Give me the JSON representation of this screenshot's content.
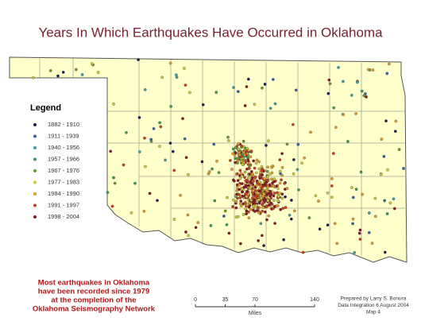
{
  "title": "Years In Which Earthquakes Have Occurred in Oklahoma",
  "legend": {
    "title": "Legend",
    "items": [
      {
        "label": "1882 - 1910",
        "color": "#1c1c5a"
      },
      {
        "label": "1911 - 1939",
        "color": "#3a5fa8"
      },
      {
        "label": "1940 - 1956",
        "color": "#3aa0a8"
      },
      {
        "label": "1957 - 1966",
        "color": "#3a9a5a"
      },
      {
        "label": "1967 - 1976",
        "color": "#6a9a2a"
      },
      {
        "label": "1977 - 1983",
        "color": "#c8c83a"
      },
      {
        "label": "1984 - 1990",
        "color": "#e09a2a"
      },
      {
        "label": "1991 - 1997",
        "color": "#c8401a"
      },
      {
        "label": "1998 - 2004",
        "color": "#8a1420"
      }
    ]
  },
  "note": [
    "Most earthquakes in Oklahoma",
    "have been recorded since 1979",
    "at the completion of the",
    "Oklahoma Seismography Network"
  ],
  "credits": [
    "Prepared by Larry S. Bonura",
    "Data Integration 6 August 2004",
    "Map 4"
  ],
  "scale": {
    "ticks": [
      0,
      35,
      70,
      140
    ],
    "unit": "Miles"
  }
}
